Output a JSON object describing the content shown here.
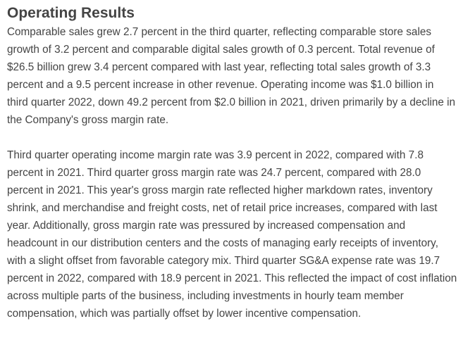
{
  "section": {
    "title": "Operating Results",
    "paragraphs": [
      "Comparable sales grew 2.7 percent in the third quarter, reflecting comparable store sales growth of 3.2 percent and comparable digital sales growth of 0.3 percent. Total revenue of $26.5 billion grew 3.4 percent compared with last year, reflecting total sales growth of 3.3 percent and a 9.5 percent increase in other revenue. Operating income was $1.0 billion in third quarter 2022, down 49.2 percent from $2.0 billion in 2021, driven primarily by a decline in the Company's gross margin rate.",
      "Third quarter operating income margin rate was 3.9 percent in 2022, compared with 7.8 percent in 2021. Third quarter gross margin rate was 24.7 percent, compared with 28.0 percent in 2021. This year's gross margin rate reflected higher markdown rates, inventory shrink, and merchandise and freight costs, net of retail price increases, compared with last year.  Additionally, gross margin rate was pressured by increased compensation and headcount in our distribution centers and the costs of managing early receipts of inventory, with a slight offset from favorable category mix. Third quarter SG&A expense rate was 19.7 percent in 2022, compared with 18.9 percent in 2021. This reflected the impact of cost inflation across multiple parts of the business, including investments in hourly team member compensation, which was partially offset by lower incentive compensation."
    ]
  }
}
